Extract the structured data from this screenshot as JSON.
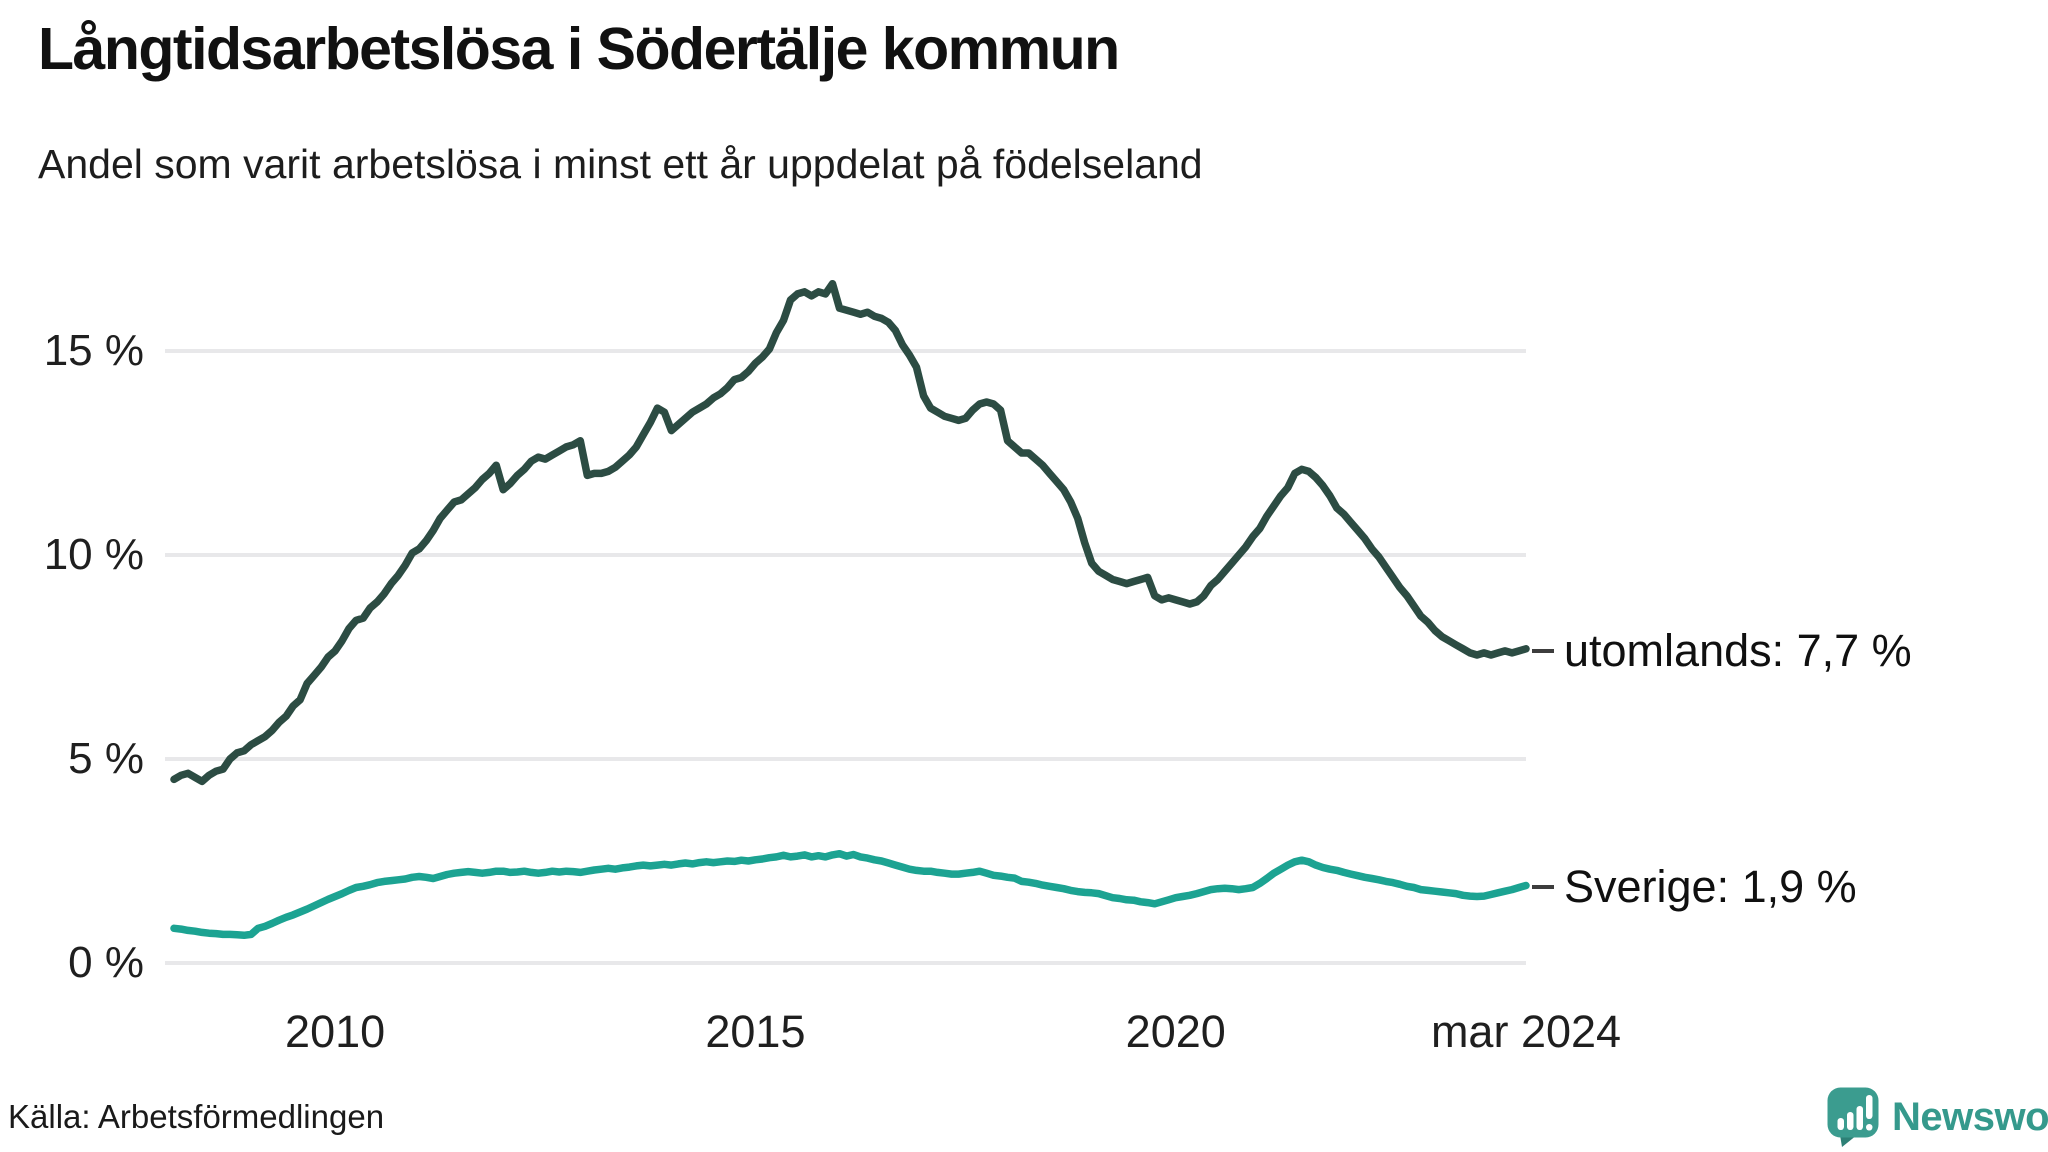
{
  "title": "Långtidsarbetslösa i Södertälje kommun",
  "subtitle": "Andel som varit arbetslösa i minst ett år uppdelat på födelseland",
  "source": "Källa: Arbetsförmedlingen",
  "logo": {
    "text": "Newsworthy",
    "icon": "newsworthy-speech-bubble-bar-chart-icon",
    "color": "#35998c"
  },
  "colors": {
    "utomlands_line": "#2c4c43",
    "sverige_line": "#1ca392",
    "gridline": "#e8e8ea",
    "text": "#1f1f1f"
  },
  "chart_data": {
    "type": "line",
    "title": "Långtidsarbetslösa i Södertälje kommun",
    "subtitle": "Andel som varit arbetslösa i minst ett år uppdelat på födelseland",
    "unit": "percent",
    "x_unit": "month",
    "x_start": "2008-02",
    "x_end": "2024-03",
    "grid": "horizontal",
    "legend_position": "end-of-line",
    "ylim": [
      0,
      17.2
    ],
    "y_ticks": [
      {
        "v": 15,
        "label": "15 %"
      },
      {
        "v": 10,
        "label": "10 %"
      },
      {
        "v": 5,
        "label": "5 %"
      },
      {
        "v": 0,
        "label": "0 %"
      }
    ],
    "x_ticks": [
      {
        "t": 2010.0,
        "label": "2010"
      },
      {
        "t": 2015.0,
        "label": "2015"
      },
      {
        "t": 2020.0,
        "label": "2020"
      },
      {
        "t": 2024.1667,
        "label": "mar 2024"
      }
    ],
    "series": [
      {
        "name": "utomlands",
        "label": "utomlands: 7,7 %",
        "last_value": 7.7,
        "color": "#2c4c43",
        "values": [
          4.5,
          4.6,
          4.65,
          4.55,
          4.45,
          4.6,
          4.7,
          4.75,
          5.0,
          5.15,
          5.2,
          5.35,
          5.45,
          5.55,
          5.7,
          5.9,
          6.05,
          6.3,
          6.45,
          6.85,
          7.05,
          7.25,
          7.5,
          7.65,
          7.9,
          8.2,
          8.4,
          8.45,
          8.7,
          8.85,
          9.05,
          9.3,
          9.5,
          9.75,
          10.05,
          10.15,
          10.35,
          10.6,
          10.9,
          11.1,
          11.3,
          11.35,
          11.5,
          11.65,
          11.85,
          12.0,
          12.2,
          11.6,
          11.75,
          11.95,
          12.1,
          12.3,
          12.4,
          12.35,
          12.45,
          12.55,
          12.65,
          12.7,
          12.8,
          11.95,
          12.0,
          12.0,
          12.05,
          12.15,
          12.3,
          12.45,
          12.65,
          12.95,
          13.25,
          13.6,
          13.5,
          13.05,
          13.2,
          13.35,
          13.5,
          13.6,
          13.7,
          13.85,
          13.95,
          14.1,
          14.3,
          14.35,
          14.5,
          14.7,
          14.85,
          15.05,
          15.45,
          15.75,
          16.25,
          16.4,
          16.45,
          16.35,
          16.45,
          16.4,
          16.65,
          16.05,
          16.0,
          15.95,
          15.9,
          15.95,
          15.85,
          15.8,
          15.7,
          15.5,
          15.15,
          14.9,
          14.6,
          13.9,
          13.6,
          13.5,
          13.4,
          13.35,
          13.3,
          13.35,
          13.55,
          13.7,
          13.75,
          13.7,
          13.55,
          12.8,
          12.65,
          12.5,
          12.5,
          12.35,
          12.2,
          12.0,
          11.8,
          11.6,
          11.3,
          10.9,
          10.3,
          9.8,
          9.6,
          9.5,
          9.4,
          9.35,
          9.3,
          9.35,
          9.4,
          9.45,
          9.0,
          8.9,
          8.95,
          8.9,
          8.85,
          8.8,
          8.85,
          9.0,
          9.25,
          9.4,
          9.6,
          9.8,
          10.0,
          10.2,
          10.45,
          10.65,
          10.95,
          11.2,
          11.45,
          11.65,
          12.0,
          12.1,
          12.05,
          11.9,
          11.7,
          11.45,
          11.15,
          11.0,
          10.8,
          10.6,
          10.4,
          10.15,
          9.95,
          9.7,
          9.45,
          9.2,
          9.0,
          8.75,
          8.5,
          8.35,
          8.15,
          8.0,
          7.9,
          7.8,
          7.7,
          7.6,
          7.55,
          7.6,
          7.55,
          7.6,
          7.65,
          7.6,
          7.65,
          7.7
        ]
      },
      {
        "name": "sverige",
        "label": "Sverige: 1,9 %",
        "last_value": 1.9,
        "color": "#1ca392",
        "values": [
          0.85,
          0.83,
          0.8,
          0.78,
          0.75,
          0.73,
          0.72,
          0.7,
          0.7,
          0.69,
          0.68,
          0.7,
          0.85,
          0.9,
          0.97,
          1.05,
          1.12,
          1.18,
          1.25,
          1.32,
          1.4,
          1.48,
          1.56,
          1.63,
          1.7,
          1.78,
          1.85,
          1.88,
          1.92,
          1.97,
          2.0,
          2.02,
          2.04,
          2.06,
          2.1,
          2.12,
          2.1,
          2.07,
          2.12,
          2.17,
          2.2,
          2.22,
          2.24,
          2.22,
          2.2,
          2.22,
          2.25,
          2.25,
          2.22,
          2.23,
          2.25,
          2.22,
          2.2,
          2.22,
          2.25,
          2.23,
          2.25,
          2.24,
          2.22,
          2.25,
          2.28,
          2.3,
          2.32,
          2.3,
          2.33,
          2.35,
          2.38,
          2.4,
          2.38,
          2.4,
          2.42,
          2.4,
          2.43,
          2.45,
          2.43,
          2.46,
          2.48,
          2.46,
          2.48,
          2.5,
          2.49,
          2.52,
          2.5,
          2.53,
          2.55,
          2.58,
          2.6,
          2.64,
          2.6,
          2.62,
          2.65,
          2.6,
          2.63,
          2.6,
          2.65,
          2.68,
          2.62,
          2.66,
          2.6,
          2.57,
          2.53,
          2.5,
          2.45,
          2.4,
          2.35,
          2.3,
          2.27,
          2.25,
          2.25,
          2.22,
          2.2,
          2.18,
          2.18,
          2.2,
          2.22,
          2.25,
          2.2,
          2.15,
          2.13,
          2.1,
          2.08,
          2.0,
          1.98,
          1.95,
          1.91,
          1.88,
          1.85,
          1.82,
          1.78,
          1.75,
          1.73,
          1.72,
          1.7,
          1.65,
          1.6,
          1.58,
          1.55,
          1.54,
          1.5,
          1.48,
          1.45,
          1.5,
          1.55,
          1.6,
          1.63,
          1.66,
          1.7,
          1.75,
          1.8,
          1.82,
          1.83,
          1.82,
          1.8,
          1.82,
          1.85,
          1.95,
          2.07,
          2.2,
          2.3,
          2.4,
          2.48,
          2.52,
          2.48,
          2.4,
          2.34,
          2.3,
          2.27,
          2.22,
          2.18,
          2.14,
          2.1,
          2.07,
          2.04,
          2.0,
          1.97,
          1.93,
          1.88,
          1.85,
          1.8,
          1.78,
          1.76,
          1.74,
          1.72,
          1.7,
          1.66,
          1.64,
          1.63,
          1.64,
          1.68,
          1.72,
          1.76,
          1.8,
          1.85,
          1.9
        ]
      }
    ]
  }
}
